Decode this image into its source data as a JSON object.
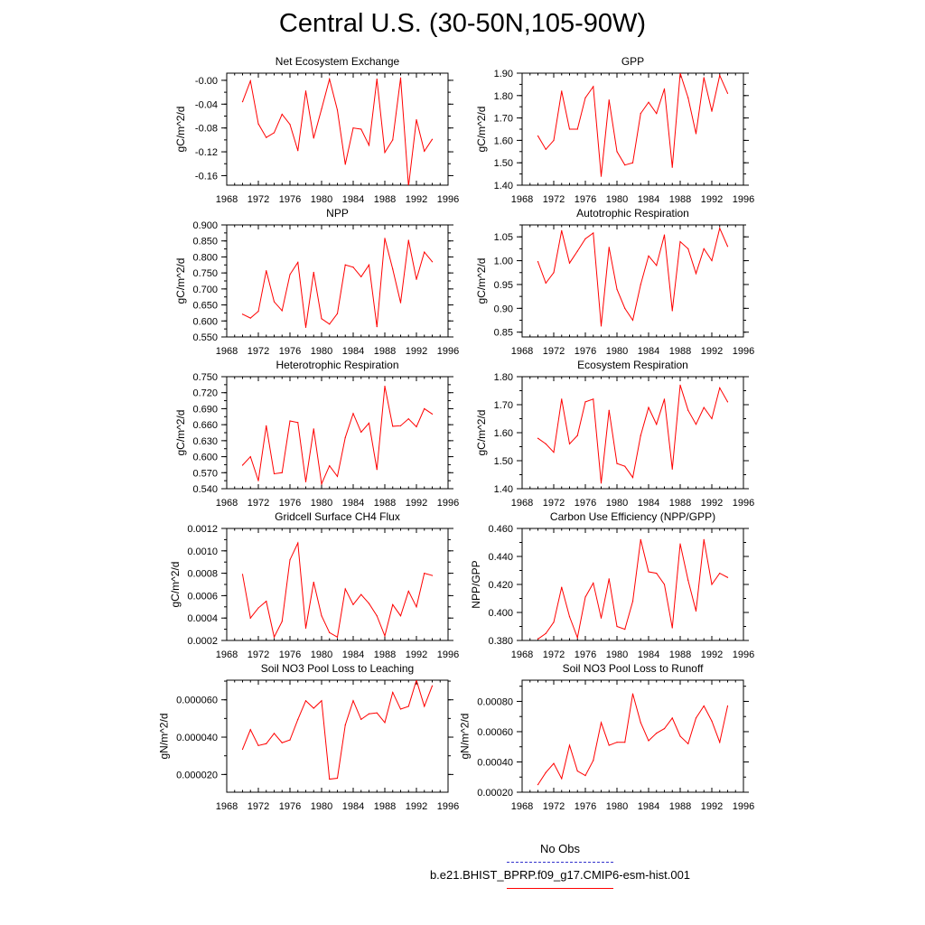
{
  "title": "Central U.S. (30-50N,105-90W)",
  "legend": {
    "entries": [
      {
        "label": "No Obs",
        "color": "#3333cc",
        "style": "dashed"
      },
      {
        "label": "b.e21.BHIST_BPRP.f09_g17.CMIP6-esm-hist.001",
        "color": "#ff0000",
        "style": "solid"
      }
    ]
  },
  "colors": {
    "series": "#ff0000",
    "axis": "#000000"
  },
  "chart_data": [
    {
      "type": "line",
      "title": "Net Ecosystem Exchange",
      "xlabel": "",
      "ylabel": "gC/m^2/d",
      "xlim": [
        1968,
        1996
      ],
      "xticks": [
        "1968",
        "1972",
        "1976",
        "1980",
        "1984",
        "1988",
        "1992",
        "1996"
      ],
      "ylim": [
        -0.176,
        0.012
      ],
      "yticks": [
        {
          "v": 0,
          "label": "-0.00"
        },
        {
          "v": -0.04,
          "label": "-0.04"
        },
        {
          "v": -0.08,
          "label": "-0.08"
        },
        {
          "v": -0.12,
          "label": "-0.12"
        },
        {
          "v": -0.16,
          "label": "-0.16"
        }
      ],
      "x": [
        1970,
        1971,
        1972,
        1973,
        1974,
        1975,
        1976,
        1977,
        1978,
        1979,
        1980,
        1981,
        1982,
        1983,
        1984,
        1985,
        1986,
        1987,
        1988,
        1989,
        1990,
        1991,
        1992,
        1993,
        1994
      ],
      "values": [
        -0.036,
        -0.001,
        -0.073,
        -0.096,
        -0.088,
        -0.057,
        -0.074,
        -0.118,
        -0.018,
        -0.097,
        -0.048,
        0.002,
        -0.05,
        -0.141,
        -0.08,
        -0.082,
        -0.109,
        0.002,
        -0.121,
        -0.1,
        0.004,
        -0.178,
        -0.066,
        -0.119,
        -0.099
      ]
    },
    {
      "type": "line",
      "title": "GPP",
      "xlabel": "",
      "ylabel": "gC/m^2/d",
      "xlim": [
        1968,
        1996
      ],
      "xticks": [
        "1968",
        "1972",
        "1976",
        "1980",
        "1984",
        "1988",
        "1992",
        "1996"
      ],
      "ylim": [
        1.4,
        1.9
      ],
      "yticks": [
        {
          "v": 1.9,
          "label": "1.90"
        },
        {
          "v": 1.8,
          "label": "1.80"
        },
        {
          "v": 1.7,
          "label": "1.70"
        },
        {
          "v": 1.6,
          "label": "1.60"
        },
        {
          "v": 1.5,
          "label": "1.50"
        },
        {
          "v": 1.4,
          "label": "1.40"
        }
      ],
      "x": [
        1970,
        1971,
        1972,
        1973,
        1974,
        1975,
        1976,
        1977,
        1978,
        1979,
        1980,
        1981,
        1982,
        1983,
        1984,
        1985,
        1986,
        1987,
        1988,
        1989,
        1990,
        1991,
        1992,
        1993,
        1994
      ],
      "values": [
        1.62,
        1.56,
        1.6,
        1.82,
        1.65,
        1.65,
        1.79,
        1.84,
        1.44,
        1.78,
        1.55,
        1.49,
        1.5,
        1.72,
        1.77,
        1.72,
        1.83,
        1.48,
        1.9,
        1.79,
        1.63,
        1.88,
        1.73,
        1.89,
        1.81
      ]
    },
    {
      "type": "line",
      "title": "NPP",
      "xlabel": "",
      "ylabel": "gC/m^2/d",
      "xlim": [
        1968,
        1996
      ],
      "xticks": [
        "1968",
        "1972",
        "1976",
        "1980",
        "1984",
        "1988",
        "1992",
        "1996"
      ],
      "ylim": [
        0.55,
        0.9
      ],
      "yticks": [
        {
          "v": 0.9,
          "label": "0.900"
        },
        {
          "v": 0.85,
          "label": "0.850"
        },
        {
          "v": 0.8,
          "label": "0.800"
        },
        {
          "v": 0.75,
          "label": "0.750"
        },
        {
          "v": 0.7,
          "label": "0.700"
        },
        {
          "v": 0.65,
          "label": "0.650"
        },
        {
          "v": 0.6,
          "label": "0.600"
        },
        {
          "v": 0.55,
          "label": "0.550"
        }
      ],
      "x": [
        1970,
        1971,
        1972,
        1973,
        1974,
        1975,
        1976,
        1977,
        1978,
        1979,
        1980,
        1981,
        1982,
        1983,
        1984,
        1985,
        1986,
        1987,
        1988,
        1989,
        1990,
        1991,
        1992,
        1993,
        1994
      ],
      "values": [
        0.621,
        0.609,
        0.63,
        0.757,
        0.66,
        0.632,
        0.745,
        0.783,
        0.58,
        0.752,
        0.607,
        0.59,
        0.623,
        0.775,
        0.768,
        0.738,
        0.775,
        0.582,
        0.858,
        0.762,
        0.657,
        0.852,
        0.73,
        0.815,
        0.785
      ]
    },
    {
      "type": "line",
      "title": "Autotrophic Respiration",
      "xlabel": "",
      "ylabel": "gC/m^2/d",
      "xlim": [
        1968,
        1996
      ],
      "xticks": [
        "1968",
        "1972",
        "1976",
        "1980",
        "1984",
        "1988",
        "1992",
        "1996"
      ],
      "ylim": [
        0.84,
        1.075
      ],
      "yticks": [
        {
          "v": 1.05,
          "label": "1.05"
        },
        {
          "v": 1.0,
          "label": "1.00"
        },
        {
          "v": 0.95,
          "label": "0.95"
        },
        {
          "v": 0.9,
          "label": "0.90"
        },
        {
          "v": 0.85,
          "label": "0.85"
        }
      ],
      "x": [
        1970,
        1971,
        1972,
        1973,
        1974,
        1975,
        1976,
        1977,
        1978,
        1979,
        1980,
        1981,
        1982,
        1983,
        1984,
        1985,
        1986,
        1987,
        1988,
        1989,
        1990,
        1991,
        1992,
        1993,
        1994
      ],
      "values": [
        0.998,
        0.953,
        0.975,
        1.063,
        0.995,
        1.02,
        1.046,
        1.058,
        0.863,
        1.028,
        0.94,
        0.9,
        0.875,
        0.95,
        1.01,
        0.99,
        1.054,
        0.895,
        1.04,
        1.025,
        0.973,
        1.025,
        1.0,
        1.068,
        1.03
      ]
    },
    {
      "type": "line",
      "title": "Heterotrophic Respiration",
      "xlabel": "",
      "ylabel": "gC/m^2/d",
      "xlim": [
        1968,
        1996
      ],
      "xticks": [
        "1968",
        "1972",
        "1976",
        "1980",
        "1984",
        "1988",
        "1992",
        "1996"
      ],
      "ylim": [
        0.54,
        0.75
      ],
      "yticks": [
        {
          "v": 0.75,
          "label": "0.750"
        },
        {
          "v": 0.72,
          "label": "0.720"
        },
        {
          "v": 0.69,
          "label": "0.690"
        },
        {
          "v": 0.66,
          "label": "0.660"
        },
        {
          "v": 0.63,
          "label": "0.630"
        },
        {
          "v": 0.6,
          "label": "0.600"
        },
        {
          "v": 0.57,
          "label": "0.570"
        },
        {
          "v": 0.54,
          "label": "0.540"
        }
      ],
      "x": [
        1970,
        1971,
        1972,
        1973,
        1974,
        1975,
        1976,
        1977,
        1978,
        1979,
        1980,
        1981,
        1982,
        1983,
        1984,
        1985,
        1986,
        1987,
        1988,
        1989,
        1990,
        1991,
        1992,
        1993,
        1994
      ],
      "values": [
        0.584,
        0.6,
        0.555,
        0.658,
        0.568,
        0.57,
        0.667,
        0.664,
        0.553,
        0.652,
        0.549,
        0.583,
        0.563,
        0.636,
        0.681,
        0.646,
        0.663,
        0.576,
        0.732,
        0.657,
        0.658,
        0.671,
        0.656,
        0.69,
        0.68
      ]
    },
    {
      "type": "line",
      "title": "Ecosystem Respiration",
      "xlabel": "",
      "ylabel": "gC/m^2/d",
      "xlim": [
        1968,
        1996
      ],
      "xticks": [
        "1968",
        "1972",
        "1976",
        "1980",
        "1984",
        "1988",
        "1992",
        "1996"
      ],
      "ylim": [
        1.4,
        1.8
      ],
      "yticks": [
        {
          "v": 1.8,
          "label": "1.80"
        },
        {
          "v": 1.7,
          "label": "1.70"
        },
        {
          "v": 1.6,
          "label": "1.60"
        },
        {
          "v": 1.5,
          "label": "1.50"
        },
        {
          "v": 1.4,
          "label": "1.40"
        }
      ],
      "x": [
        1970,
        1971,
        1972,
        1973,
        1974,
        1975,
        1976,
        1977,
        1978,
        1979,
        1980,
        1981,
        1982,
        1983,
        1984,
        1985,
        1986,
        1987,
        1988,
        1989,
        1990,
        1991,
        1992,
        1993,
        1994
      ],
      "values": [
        1.58,
        1.56,
        1.53,
        1.72,
        1.56,
        1.59,
        1.71,
        1.72,
        1.42,
        1.68,
        1.49,
        1.48,
        1.44,
        1.59,
        1.69,
        1.63,
        1.72,
        1.47,
        1.77,
        1.68,
        1.63,
        1.69,
        1.65,
        1.76,
        1.71
      ]
    },
    {
      "type": "line",
      "title": "Gridcell Surface CH4 Flux",
      "xlabel": "",
      "ylabel": "gC/m^2/d",
      "xlim": [
        1968,
        1996
      ],
      "xticks": [
        "1968",
        "1972",
        "1976",
        "1980",
        "1984",
        "1988",
        "1992",
        "1996"
      ],
      "ylim": [
        0.0002,
        0.0012
      ],
      "yticks": [
        {
          "v": 0.0012,
          "label": "0.0012"
        },
        {
          "v": 0.001,
          "label": "0.0010"
        },
        {
          "v": 0.0008,
          "label": "0.0008"
        },
        {
          "v": 0.0006,
          "label": "0.0006"
        },
        {
          "v": 0.0004,
          "label": "0.0004"
        },
        {
          "v": 0.0002,
          "label": "0.0002"
        }
      ],
      "x": [
        1970,
        1971,
        1972,
        1973,
        1974,
        1975,
        1976,
        1977,
        1978,
        1979,
        1980,
        1981,
        1982,
        1983,
        1984,
        1985,
        1986,
        1987,
        1988,
        1989,
        1990,
        1991,
        1992,
        1993,
        1994
      ],
      "values": [
        0.00079,
        0.0004,
        0.00049,
        0.00055,
        0.00023,
        0.00037,
        0.00092,
        0.00107,
        0.00031,
        0.00072,
        0.00042,
        0.00027,
        0.00023,
        0.00066,
        0.00052,
        0.00061,
        0.00053,
        0.00042,
        0.00024,
        0.00052,
        0.00042,
        0.00064,
        0.0005,
        0.0008,
        0.00078
      ]
    },
    {
      "type": "line",
      "title": "Carbon Use Efficiency (NPP/GPP)",
      "xlabel": "",
      "ylabel": "NPP/GPP",
      "xlim": [
        1968,
        1996
      ],
      "xticks": [
        "1968",
        "1972",
        "1976",
        "1980",
        "1984",
        "1988",
        "1992",
        "1996"
      ],
      "ylim": [
        0.38,
        0.46
      ],
      "yticks": [
        {
          "v": 0.46,
          "label": "0.460"
        },
        {
          "v": 0.44,
          "label": "0.440"
        },
        {
          "v": 0.42,
          "label": "0.420"
        },
        {
          "v": 0.4,
          "label": "0.400"
        },
        {
          "v": 0.38,
          "label": "0.380"
        }
      ],
      "x": [
        1970,
        1971,
        1972,
        1973,
        1974,
        1975,
        1976,
        1977,
        1978,
        1979,
        1980,
        1981,
        1982,
        1983,
        1984,
        1985,
        1986,
        1987,
        1988,
        1989,
        1990,
        1991,
        1992,
        1993,
        1994
      ],
      "values": [
        0.381,
        0.385,
        0.393,
        0.418,
        0.397,
        0.382,
        0.411,
        0.421,
        0.396,
        0.424,
        0.39,
        0.388,
        0.408,
        0.452,
        0.429,
        0.428,
        0.42,
        0.389,
        0.449,
        0.423,
        0.401,
        0.452,
        0.42,
        0.428,
        0.425
      ]
    },
    {
      "type": "line",
      "title": "Soil NO3 Pool Loss to Leaching",
      "xlabel": "",
      "ylabel": "gN/m^2/d",
      "xlim": [
        1968,
        1996
      ],
      "xticks": [
        "1968",
        "1972",
        "1976",
        "1980",
        "1984",
        "1988",
        "1992",
        "1996"
      ],
      "ylim": [
        1.05e-05,
        7.05e-05
      ],
      "yticks": [
        {
          "v": 6e-05,
          "label": "0.000060"
        },
        {
          "v": 4e-05,
          "label": "0.000040"
        },
        {
          "v": 2e-05,
          "label": "0.000020"
        }
      ],
      "x": [
        1970,
        1971,
        1972,
        1973,
        1974,
        1975,
        1976,
        1977,
        1978,
        1979,
        1980,
        1981,
        1982,
        1983,
        1984,
        1985,
        1986,
        1987,
        1988,
        1989,
        1990,
        1991,
        1992,
        1993,
        1994
      ],
      "values": [
        3.35e-05,
        4.4e-05,
        3.55e-05,
        3.65e-05,
        4.2e-05,
        3.7e-05,
        3.85e-05,
        4.95e-05,
        5.95e-05,
        5.55e-05,
        5.95e-05,
        1.75e-05,
        1.8e-05,
        4.65e-05,
        5.95e-05,
        4.95e-05,
        5.25e-05,
        5.3e-05,
        4.78e-05,
        6.4e-05,
        5.5e-05,
        5.65e-05,
        7.05e-05,
        5.65e-05,
        6.75e-05
      ]
    },
    {
      "type": "line",
      "title": "Soil NO3 Pool Loss to Runoff",
      "xlabel": "",
      "ylabel": "gN/m^2/d",
      "xlim": [
        1968,
        1996
      ],
      "xticks": [
        "1968",
        "1972",
        "1976",
        "1980",
        "1984",
        "1988",
        "1992",
        "1996"
      ],
      "ylim": [
        0.0002,
        0.00094
      ],
      "yticks": [
        {
          "v": 0.0008,
          "label": "0.00080"
        },
        {
          "v": 0.0006,
          "label": "0.00060"
        },
        {
          "v": 0.0004,
          "label": "0.00040"
        },
        {
          "v": 0.0002,
          "label": "0.00020"
        }
      ],
      "x": [
        1970,
        1971,
        1972,
        1973,
        1974,
        1975,
        1976,
        1977,
        1978,
        1979,
        1980,
        1981,
        1982,
        1983,
        1984,
        1985,
        1986,
        1987,
        1988,
        1989,
        1990,
        1991,
        1992,
        1993,
        1994
      ],
      "values": [
        0.00025,
        0.00033,
        0.00039,
        0.00029,
        0.00051,
        0.00034,
        0.00031,
        0.00041,
        0.00066,
        0.00051,
        0.00053,
        0.00053,
        0.00085,
        0.00066,
        0.00054,
        0.00059,
        0.00062,
        0.00069,
        0.00057,
        0.00052,
        0.00069,
        0.00077,
        0.00067,
        0.00053,
        0.00077
      ]
    }
  ]
}
